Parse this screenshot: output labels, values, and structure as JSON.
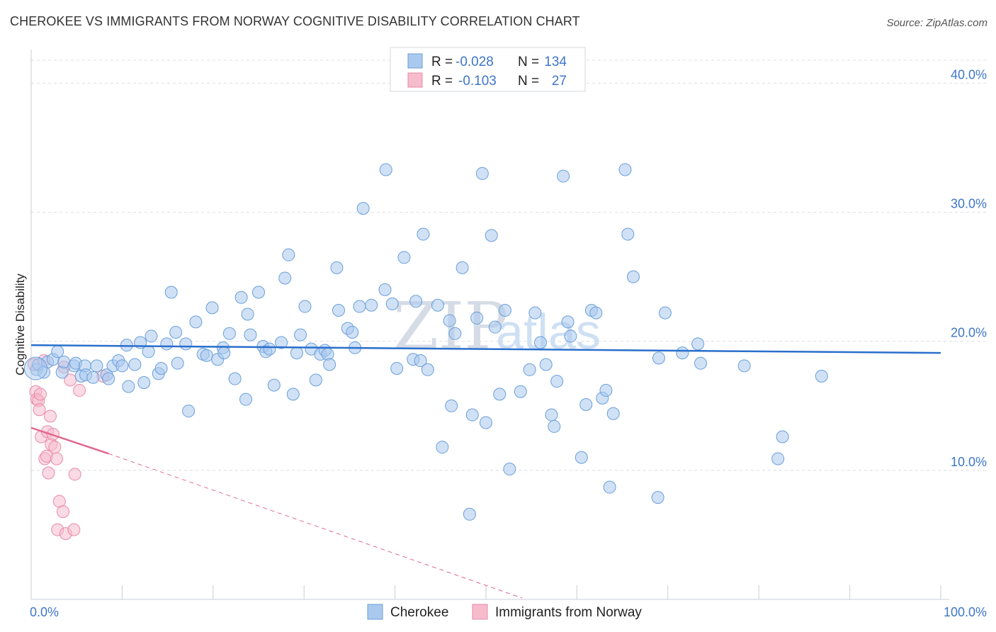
{
  "title": "CHEROKEE VS IMMIGRANTS FROM NORWAY COGNITIVE DISABILITY CORRELATION CHART",
  "source": "Source: ZipAtlas.com",
  "watermark": {
    "zip": "ZIP",
    "atlas": "atlas"
  },
  "colors": {
    "blue_fill": "#aac9ee",
    "blue_stroke": "#6a9fd8",
    "blue_line": "#2a6fcc",
    "pink_fill": "#f6bccd",
    "pink_stroke": "#e88aa8",
    "pink_line": "#e0668e",
    "axis_text": "#3e76c8",
    "grid": "#d9dee6"
  },
  "legend": {
    "rows": [
      {
        "r_label": "R =",
        "r_value": "-0.028",
        "n_label": "N =",
        "n_value": "134"
      },
      {
        "r_label": "R =",
        "r_value": "-0.103",
        "n_label": "N =",
        "n_value": "27"
      }
    ]
  },
  "bottom_legend": {
    "series1": "Cherokee",
    "series2": "Immigrants from Norway"
  },
  "chart_data": {
    "type": "scatter",
    "title": "CHEROKEE VS IMMIGRANTS FROM NORWAY COGNITIVE DISABILITY CORRELATION CHART",
    "xlabel": "",
    "ylabel": "Cognitive Disability",
    "xlim": [
      0,
      100
    ],
    "ylim": [
      0,
      42
    ],
    "x_tick_labels": [
      "0.0%",
      "100.0%"
    ],
    "y_ticks": [
      10,
      20,
      30,
      40
    ],
    "y_tick_labels": [
      "10.0%",
      "20.0%",
      "30.0%",
      "40.0%"
    ],
    "grid": "horizontal dashed",
    "legend_placement": "top-center",
    "series": [
      {
        "name": "Cherokee",
        "color": "#aac9ee",
        "trend": {
          "x0": 0,
          "y0": 19.7,
          "x1": 100,
          "y1": 19.1
        },
        "points": [
          [
            0.6,
            17.8
          ],
          [
            0.8,
            18.2
          ],
          [
            1.4,
            17.6
          ],
          [
            1.8,
            18.4
          ],
          [
            2.4,
            18.6
          ],
          [
            2.9,
            19.2
          ],
          [
            3.4,
            17.6
          ],
          [
            3.6,
            18.4
          ],
          [
            4.7,
            18.1
          ],
          [
            4.9,
            18.3
          ],
          [
            5.5,
            17.3
          ],
          [
            5.9,
            18.1
          ],
          [
            6.0,
            17.4
          ],
          [
            6.8,
            17.2
          ],
          [
            7.2,
            18.1
          ],
          [
            8.3,
            17.4
          ],
          [
            8.5,
            17.1
          ],
          [
            9.0,
            18.1
          ],
          [
            9.6,
            18.5
          ],
          [
            10.0,
            18.1
          ],
          [
            10.5,
            19.7
          ],
          [
            10.7,
            16.5
          ],
          [
            11.4,
            18.2
          ],
          [
            12.0,
            19.9
          ],
          [
            12.4,
            16.8
          ],
          [
            12.9,
            19.2
          ],
          [
            13.2,
            20.4
          ],
          [
            14.0,
            17.5
          ],
          [
            14.3,
            17.9
          ],
          [
            14.9,
            19.8
          ],
          [
            15.4,
            23.8
          ],
          [
            15.9,
            20.7
          ],
          [
            16.1,
            18.3
          ],
          [
            17.0,
            19.8
          ],
          [
            17.3,
            14.6
          ],
          [
            18.1,
            21.5
          ],
          [
            18.9,
            19.0
          ],
          [
            19.3,
            18.9
          ],
          [
            19.9,
            22.6
          ],
          [
            20.5,
            18.6
          ],
          [
            21.1,
            19.5
          ],
          [
            21.2,
            19.1
          ],
          [
            21.8,
            20.6
          ],
          [
            22.4,
            17.1
          ],
          [
            23.1,
            23.4
          ],
          [
            23.6,
            15.5
          ],
          [
            23.8,
            22.1
          ],
          [
            24.1,
            20.5
          ],
          [
            25.0,
            23.8
          ],
          [
            25.5,
            19.6
          ],
          [
            25.8,
            19.2
          ],
          [
            26.2,
            19.4
          ],
          [
            26.7,
            16.6
          ],
          [
            27.5,
            19.9
          ],
          [
            27.9,
            24.9
          ],
          [
            28.3,
            26.7
          ],
          [
            28.8,
            15.9
          ],
          [
            29.2,
            19.1
          ],
          [
            29.6,
            20.5
          ],
          [
            30.1,
            22.7
          ],
          [
            30.8,
            19.4
          ],
          [
            31.3,
            17.0
          ],
          [
            31.8,
            19.0
          ],
          [
            32.3,
            19.3
          ],
          [
            32.6,
            19.0
          ],
          [
            32.8,
            18.2
          ],
          [
            33.6,
            25.7
          ],
          [
            33.8,
            22.4
          ],
          [
            34.8,
            21.0
          ],
          [
            35.3,
            20.7
          ],
          [
            35.6,
            19.5
          ],
          [
            36.1,
            22.7
          ],
          [
            36.5,
            30.3
          ],
          [
            37.4,
            22.8
          ],
          [
            38.9,
            24.0
          ],
          [
            39.0,
            33.3
          ],
          [
            39.7,
            22.9
          ],
          [
            40.2,
            17.9
          ],
          [
            41.0,
            26.5
          ],
          [
            42.0,
            18.6
          ],
          [
            42.3,
            23.1
          ],
          [
            42.8,
            18.5
          ],
          [
            43.1,
            28.3
          ],
          [
            43.6,
            17.8
          ],
          [
            44.7,
            22.8
          ],
          [
            45.2,
            11.8
          ],
          [
            46.0,
            21.6
          ],
          [
            46.2,
            15.0
          ],
          [
            46.6,
            20.6
          ],
          [
            47.4,
            25.7
          ],
          [
            48.2,
            6.6
          ],
          [
            48.5,
            14.3
          ],
          [
            49.0,
            21.8
          ],
          [
            49.6,
            33.0
          ],
          [
            50.0,
            13.7
          ],
          [
            50.6,
            28.2
          ],
          [
            51.0,
            21.1
          ],
          [
            51.5,
            15.9
          ],
          [
            52.1,
            22.4
          ],
          [
            52.6,
            10.1
          ],
          [
            53.8,
            16.1
          ],
          [
            54.8,
            17.8
          ],
          [
            55.4,
            22.2
          ],
          [
            56.0,
            19.9
          ],
          [
            56.6,
            18.2
          ],
          [
            57.2,
            14.3
          ],
          [
            57.5,
            13.4
          ],
          [
            57.8,
            16.9
          ],
          [
            58.5,
            32.8
          ],
          [
            59.0,
            21.5
          ],
          [
            59.3,
            20.4
          ],
          [
            60.5,
            11.0
          ],
          [
            61.0,
            15.1
          ],
          [
            61.6,
            22.4
          ],
          [
            62.1,
            22.2
          ],
          [
            62.8,
            15.6
          ],
          [
            63.2,
            16.2
          ],
          [
            63.6,
            8.7
          ],
          [
            64.0,
            14.4
          ],
          [
            65.3,
            33.3
          ],
          [
            65.6,
            28.3
          ],
          [
            66.2,
            25.0
          ],
          [
            68.9,
            7.9
          ],
          [
            69.0,
            18.7
          ],
          [
            69.7,
            22.2
          ],
          [
            71.6,
            19.1
          ],
          [
            73.3,
            19.8
          ],
          [
            73.6,
            18.3
          ],
          [
            78.4,
            18.1
          ],
          [
            82.1,
            10.9
          ],
          [
            82.6,
            12.6
          ],
          [
            86.9,
            17.3
          ]
        ]
      },
      {
        "name": "Immigrants from Norway",
        "color": "#f6bccd",
        "trend": {
          "x0": 0,
          "y0": 13.3,
          "x1": 8.5,
          "y1": 11.3,
          "dash_to_x": 54,
          "dash_to_y": 0.1
        },
        "points": [
          [
            0.3,
            18.2
          ],
          [
            0.5,
            16.1
          ],
          [
            0.6,
            15.5
          ],
          [
            0.8,
            15.4
          ],
          [
            0.9,
            14.7
          ],
          [
            1.0,
            15.9
          ],
          [
            1.1,
            12.6
          ],
          [
            1.4,
            18.5
          ],
          [
            1.5,
            10.9
          ],
          [
            1.7,
            11.1
          ],
          [
            1.8,
            13.0
          ],
          [
            1.9,
            9.8
          ],
          [
            2.1,
            14.2
          ],
          [
            2.2,
            12.0
          ],
          [
            2.4,
            12.8
          ],
          [
            2.6,
            11.8
          ],
          [
            2.8,
            10.9
          ],
          [
            2.9,
            5.4
          ],
          [
            3.1,
            7.6
          ],
          [
            3.5,
            6.8
          ],
          [
            3.6,
            18.0
          ],
          [
            3.8,
            5.1
          ],
          [
            4.3,
            17.0
          ],
          [
            4.7,
            5.4
          ],
          [
            4.8,
            9.7
          ],
          [
            5.3,
            16.2
          ],
          [
            7.9,
            17.3
          ]
        ]
      }
    ]
  }
}
